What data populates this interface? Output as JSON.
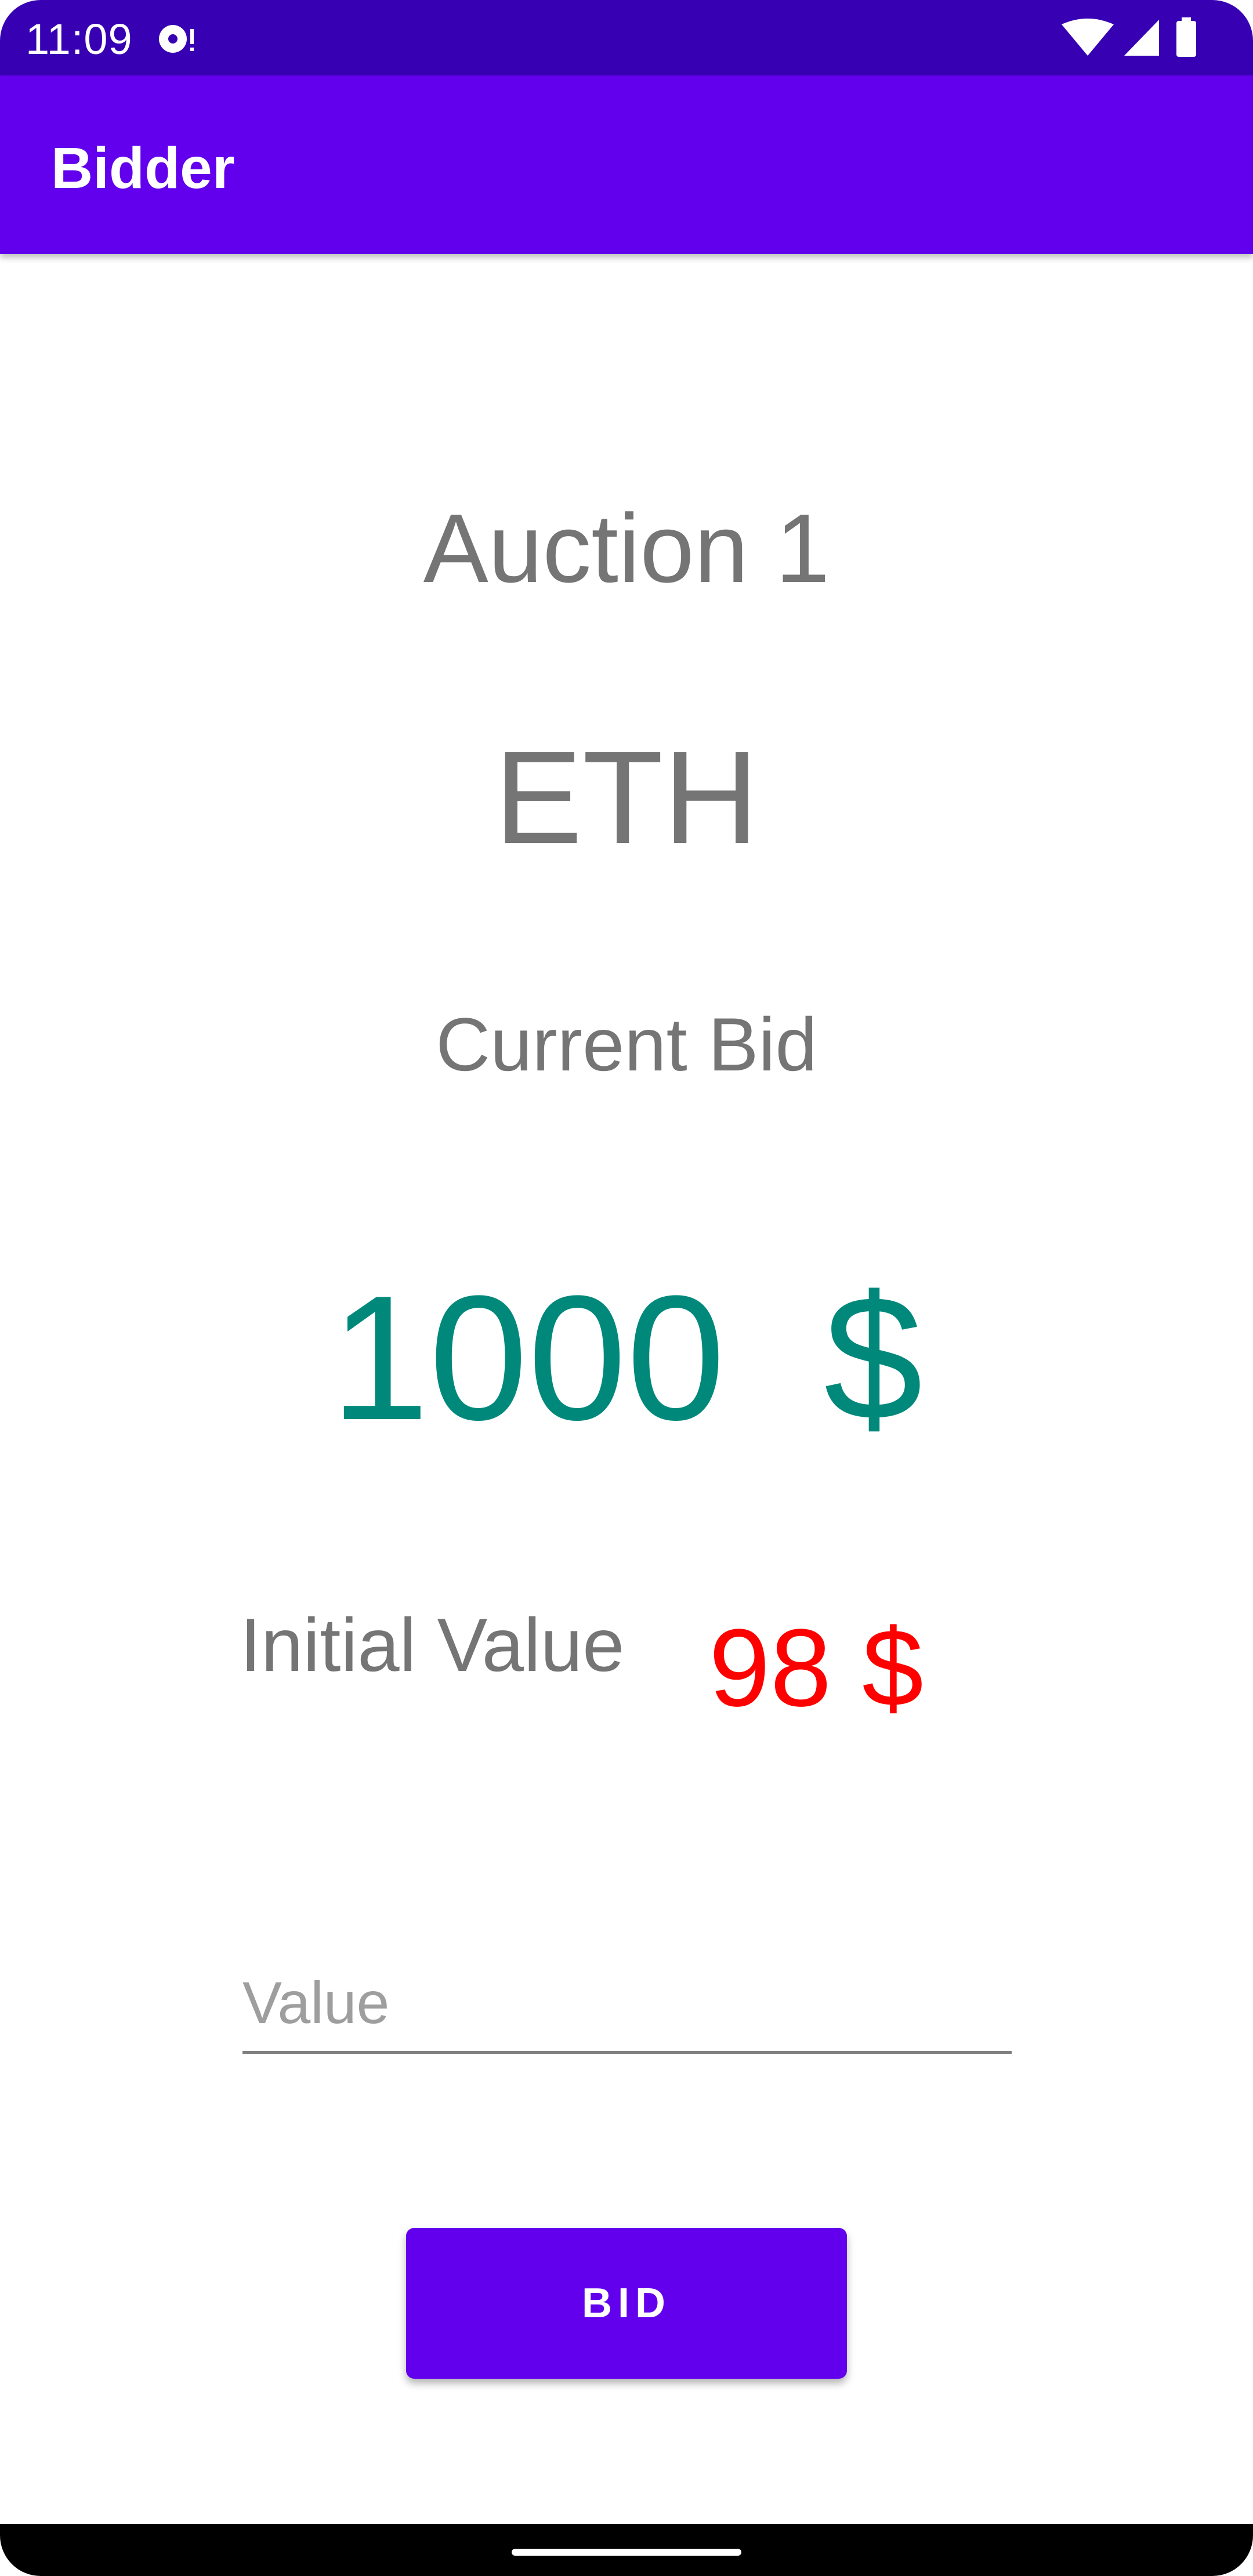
{
  "status_bar": {
    "time": "11:09",
    "icons": [
      "media-icon",
      "wifi-icon",
      "signal-icon",
      "battery-icon"
    ]
  },
  "app_bar": {
    "title": "Bidder"
  },
  "auction": {
    "title": "Auction 1",
    "currency": "ETH",
    "current_bid_label": "Current Bid",
    "current_bid_amount": "1000  $",
    "initial_value_label": "Initial Value",
    "initial_value_amount": "98 $"
  },
  "form": {
    "value_placeholder": "Value",
    "bid_button_label": "BID"
  },
  "colors": {
    "status_bar": "#3700b3",
    "primary": "#6200ee",
    "bid_amount": "#00897b",
    "initial_amount": "#ff0000",
    "label_text": "#757575"
  }
}
